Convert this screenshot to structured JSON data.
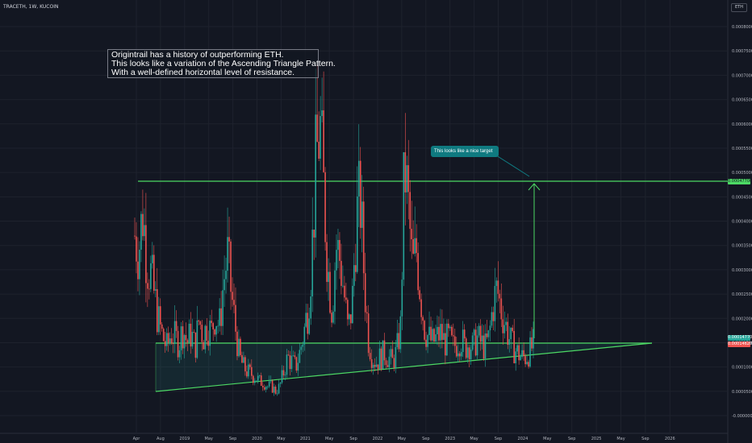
{
  "header": {
    "symbol": "TRACETH, 1W, KUCOIN",
    "currency": "ETH"
  },
  "annotations": {
    "note_lines": [
      "Origintrail has a history of outperforming ETH.",
      "This looks like a variation of the Ascending Triangle Pattern.",
      "With a well-defined horizontal level of resistance."
    ],
    "target_callout": "This looks like a nice target"
  },
  "price_labels": {
    "target": "0.00047700",
    "green": "0.00014770",
    "red": "0.00014620"
  },
  "colors": {
    "up": "#26a69a",
    "down": "#ef5350",
    "line": "#4cd964",
    "bg": "#131722",
    "callout": "#0f7a80"
  },
  "chart_data": {
    "type": "candlestick",
    "title": "TRACETH, 1W, KUCOIN",
    "y_ticks": [
      "0.0008000",
      "0.0007500",
      "0.0007000",
      "0.0006500",
      "0.0006000",
      "0.0005500",
      "0.0005000",
      "0.0004500",
      "0.0004000",
      "0.0003500",
      "0.0003000",
      "0.0002500",
      "0.0002000",
      "0.0001500",
      "0.0001000",
      "0.0000500",
      "-0.0000000"
    ],
    "x_ticks": [
      "Apr",
      "Aug",
      "2019",
      "May",
      "Sep",
      "2020",
      "May",
      "2021",
      "May",
      "Sep",
      "2022",
      "May",
      "Sep",
      "2023",
      "May",
      "Sep",
      "2024",
      "May",
      "Sep",
      "2025",
      "May",
      "Sep",
      "2026"
    ],
    "ylim": [
      -2e-05,
      0.00082
    ],
    "resistance_level": 0.000477,
    "support_level": 0.000147,
    "last_price": 0.0001462,
    "target_price": 0.000477,
    "close_envelope": [
      [
        0,
        0.00037
      ],
      [
        1,
        0.00034
      ],
      [
        2,
        0.00042
      ],
      [
        3,
        0.00032
      ],
      [
        4,
        0.00029
      ],
      [
        5,
        0.00024
      ],
      [
        6,
        0.00019
      ],
      [
        7,
        0.00016
      ],
      [
        8,
        0.00014
      ],
      [
        9,
        0.00017
      ],
      [
        10,
        0.00016
      ],
      [
        11,
        0.00015
      ],
      [
        12,
        0.00018
      ],
      [
        13,
        0.00015
      ],
      [
        14,
        0.00017
      ],
      [
        15,
        0.00014
      ],
      [
        16,
        0.0002
      ],
      [
        17,
        0.00016
      ],
      [
        18,
        0.00019
      ],
      [
        19,
        0.00017
      ],
      [
        20,
        0.00021
      ],
      [
        21,
        0.00018
      ],
      [
        22,
        0.00027
      ],
      [
        23,
        0.00033
      ],
      [
        24,
        0.00025
      ],
      [
        25,
        0.00018
      ],
      [
        26,
        0.00012
      ],
      [
        27,
        0.0001
      ],
      [
        28,
        9e-05
      ],
      [
        29,
        8.5e-05
      ],
      [
        30,
        8e-05
      ],
      [
        31,
        7e-05
      ],
      [
        32,
        7e-05
      ],
      [
        33,
        6e-05
      ],
      [
        34,
        6e-05
      ],
      [
        35,
        5e-05
      ],
      [
        36,
        6e-05
      ],
      [
        37,
        9e-05
      ],
      [
        38,
        0.00012
      ],
      [
        39,
        0.00011
      ],
      [
        40,
        0.0001
      ],
      [
        41,
        0.00013
      ],
      [
        42,
        0.00017
      ],
      [
        43,
        0.00022
      ],
      [
        44,
        0.00033
      ],
      [
        45,
        0.00052
      ],
      [
        46,
        0.0006
      ],
      [
        47,
        0.00045
      ],
      [
        48,
        0.0003
      ],
      [
        49,
        0.00022
      ],
      [
        50,
        0.00035
      ],
      [
        51,
        0.00032
      ],
      [
        52,
        0.00025
      ],
      [
        53,
        0.00017
      ],
      [
        54,
        0.00023
      ],
      [
        55,
        0.0004
      ],
      [
        56,
        0.00045
      ],
      [
        57,
        0.00028
      ],
      [
        58,
        0.00016
      ],
      [
        59,
        0.00012
      ],
      [
        60,
        0.00011
      ],
      [
        61,
        0.00012
      ],
      [
        62,
        0.00013
      ],
      [
        63,
        0.00012
      ],
      [
        64,
        0.00011
      ],
      [
        65,
        0.00013
      ],
      [
        66,
        0.00018
      ],
      [
        67,
        0.00052
      ],
      [
        68,
        0.00042
      ],
      [
        69,
        0.0003
      ],
      [
        70,
        0.00034
      ],
      [
        71,
        0.00025
      ],
      [
        72,
        0.00018
      ],
      [
        73,
        0.00016
      ],
      [
        74,
        0.00015
      ],
      [
        75,
        0.00016
      ],
      [
        76,
        0.00017
      ],
      [
        77,
        0.00015
      ],
      [
        78,
        0.00016
      ],
      [
        79,
        0.00014
      ],
      [
        80,
        0.00015
      ],
      [
        81,
        0.00016
      ],
      [
        82,
        0.00014
      ],
      [
        83,
        0.00015
      ],
      [
        84,
        0.00014
      ],
      [
        85,
        0.00016
      ],
      [
        86,
        0.00015
      ],
      [
        87,
        0.00014
      ],
      [
        88,
        0.00016
      ],
      [
        89,
        0.00023
      ],
      [
        90,
        0.00026
      ],
      [
        91,
        0.00022
      ],
      [
        92,
        0.00019
      ],
      [
        93,
        0.00016
      ],
      [
        94,
        0.00014
      ],
      [
        95,
        0.00013
      ],
      [
        96,
        0.00012
      ],
      [
        97,
        0.00012
      ],
      [
        98,
        0.00013
      ],
      [
        99,
        0.000146
      ]
    ]
  }
}
